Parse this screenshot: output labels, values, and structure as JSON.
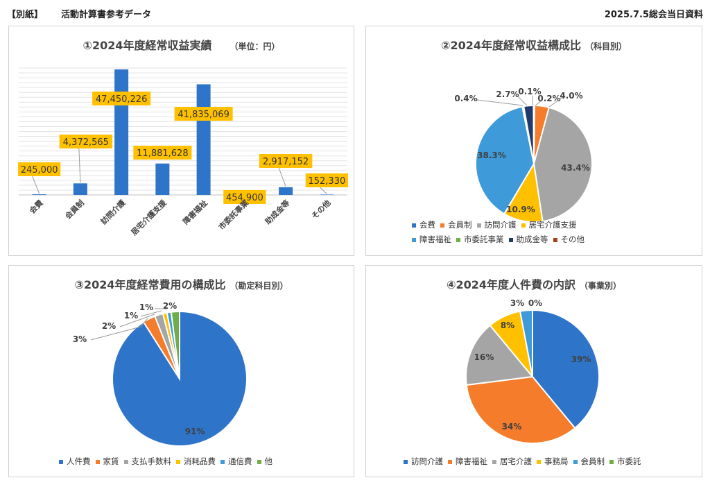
{
  "header": {
    "left": "【別紙】",
    "left2": "活動計算書参考データ",
    "right": "2025.7.5総会当日資料"
  },
  "chart_data": [
    {
      "type": "bar",
      "title": "①2024年度経常収益実績",
      "subtitle": "（単位：円）",
      "categories": [
        "会費",
        "会員制",
        "訪問介護",
        "居宅介護支援",
        "障害福祉",
        "市委託事業",
        "助成金等",
        "その他"
      ],
      "values": [
        245000,
        4372565,
        47450226,
        11881628,
        41835069,
        454900,
        2917152,
        152330
      ],
      "data_labels": [
        "245,000",
        "4,372,565",
        "47,450,226",
        "11,881,628",
        "41,835,069",
        "454,900",
        "2,917,152",
        "152,330"
      ],
      "ylim": [
        0,
        48000000
      ],
      "grid": true,
      "colors": {
        "bar": "#2E74C9",
        "label_bg": "#FFC000"
      }
    },
    {
      "type": "pie",
      "title": "②2024年度経常収益構成比",
      "subtitle": "（科目別）",
      "categories": [
        "会費",
        "会員制",
        "訪問介護",
        "居宅介護支援",
        "障害福祉",
        "市委託事業",
        "助成金等",
        "その他"
      ],
      "values": [
        0.2,
        4.0,
        43.4,
        10.9,
        38.3,
        0.4,
        2.7,
        0.1
      ],
      "data_labels": [
        "0.2%",
        "4.0%",
        "43.4%",
        "10.9%",
        "38.3%",
        "0.4%",
        "2.7%",
        "0.1%"
      ],
      "colors": [
        "#2E74C9",
        "#F47C2A",
        "#A5A5A5",
        "#FFC000",
        "#3E9AD8",
        "#70AD47",
        "#1F3A6B",
        "#A3431C"
      ],
      "legend": "bottom"
    },
    {
      "type": "pie",
      "title": "③2024年度経常費用の構成比",
      "subtitle": "（勘定科目別）",
      "categories": [
        "人件費",
        "家賃",
        "支払手数料",
        "消耗品費",
        "通信費",
        "他"
      ],
      "values": [
        91,
        3,
        2,
        1,
        1,
        2
      ],
      "data_labels": [
        "91%",
        "3%",
        "2%",
        "1%",
        "1%",
        "2%"
      ],
      "colors": [
        "#2E74C9",
        "#F47C2A",
        "#A5A5A5",
        "#FFC000",
        "#3E9AD8",
        "#70AD47"
      ],
      "legend": "bottom"
    },
    {
      "type": "pie",
      "title": "④2024年度人件費の内訳",
      "subtitle": "（事業別）",
      "categories": [
        "訪問介護",
        "障害福祉",
        "居宅介護",
        "事務局",
        "会員制",
        "市委託"
      ],
      "values": [
        39,
        34,
        16,
        8,
        3,
        0
      ],
      "data_labels": [
        "39%",
        "34%",
        "16%",
        "8%",
        "3%",
        "0%"
      ],
      "colors": [
        "#2E74C9",
        "#F47C2A",
        "#A5A5A5",
        "#FFC000",
        "#3E9AD8",
        "#70AD47"
      ],
      "legend": "bottom"
    }
  ]
}
